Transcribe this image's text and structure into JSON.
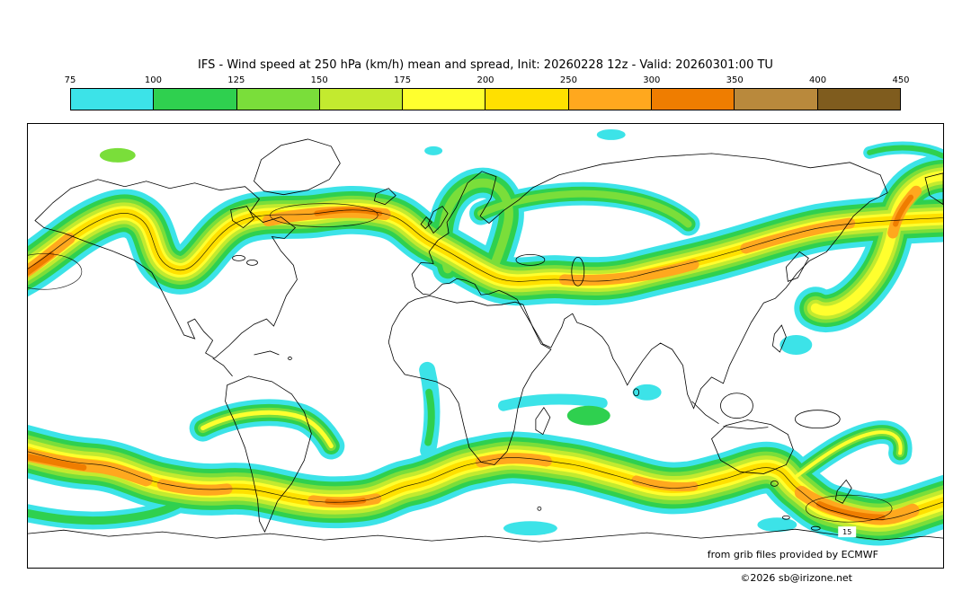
{
  "title": "IFS - Wind speed at 250 hPa (km/h) mean and spread, Init: 20260228 12z - Valid: 20260301:00 TU",
  "colorbar": {
    "labels": [
      "75",
      "100",
      "125",
      "150",
      "175",
      "200",
      "250",
      "300",
      "350",
      "400",
      "450"
    ],
    "colors": [
      "#3ce3e8",
      "#2fd04f",
      "#7ade3a",
      "#c3ea2f",
      "#ffff2e",
      "#ffe000",
      "#ffa81e",
      "#ef7d00",
      "#b9893c",
      "#7f5c1e"
    ]
  },
  "map": {
    "contour_label": "15",
    "credit": "from grib files provided by ECMWF",
    "copyright": "©2026 sb@irizone.net"
  },
  "chart_data": {
    "type": "heatmap",
    "title": "IFS - Wind speed at 250 hPa (km/h) mean and spread",
    "model": "IFS",
    "parameter": "Wind speed at 250 hPa",
    "units": "km/h",
    "statistic": "mean and spread",
    "init": "20260228 12z",
    "valid": "20260301:00 TU",
    "projection": "equirectangular world map, Europe/Africa centered",
    "levels": [
      75,
      100,
      125,
      150,
      175,
      200,
      250,
      300,
      350,
      400,
      450
    ],
    "palette": [
      "#3ce3e8",
      "#2fd04f",
      "#7ade3a",
      "#c3ea2f",
      "#ffff2e",
      "#ffe000",
      "#ffa81e",
      "#ef7d00",
      "#b9893c",
      "#7f5c1e"
    ],
    "spread_contour_label": 15,
    "features": [
      "Northern-hemisphere jet: wavy band near 40-60N across North America, the Atlantic, Europe and Asia with 250-350 km/h cores at the western map edge, over eastern North America / west Atlantic, central Asia and the NW Pacific near the right edge",
      "Southern-hemisphere jet: nearly continuous band near 40-60S with 250-350 km/h cores at the left edge, in the South Atlantic, south of Africa, over the southern Indian Ocean, south of Australia and in the SE Pacific near New Zealand",
      "Scattered 75-125 km/h patches in the tropics (equatorial Africa, Indian Ocean, west Pacific) and in the Arctic"
    ],
    "legend_position": "top horizontal colorbar",
    "grid": false
  }
}
